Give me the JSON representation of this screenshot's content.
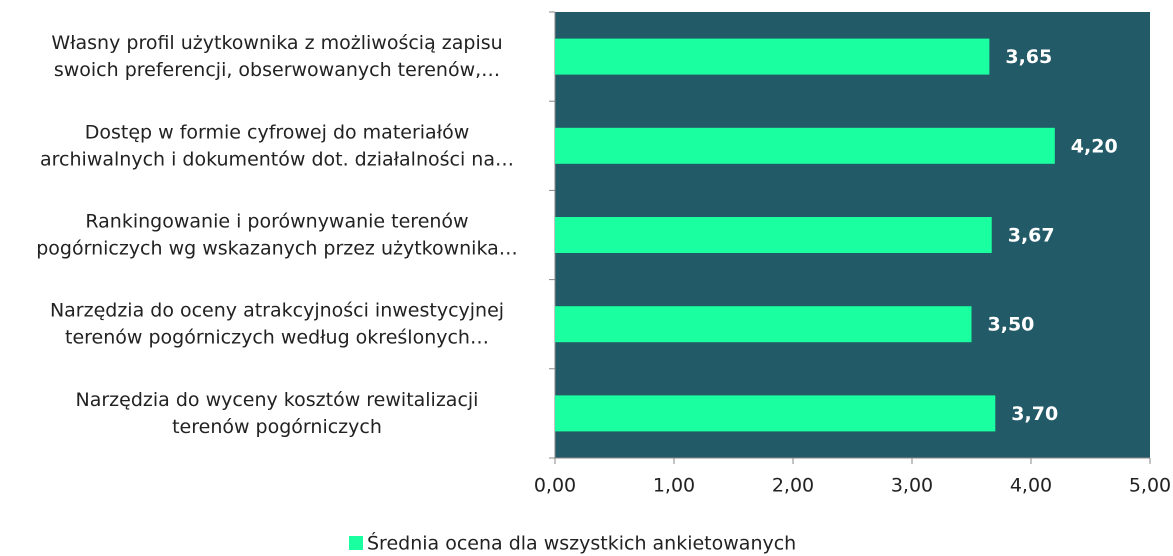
{
  "chart_data": {
    "type": "bar",
    "orientation": "horizontal",
    "categories": [
      "Własny profil użytkownika z możliwością zapisu\nswoich preferencji, obserwowanych terenów,…",
      "Dostęp w formie cyfrowej do materiałów\narchiwalnych i dokumentów dot. działalności na…",
      "Rankingowanie i porównywanie terenów\npogórniczych wg wskazanych przez użytkownika…",
      "Narzędzia do oceny atrakcyjności inwestycyjnej\nterenów pogórniczych według określonych…",
      "Narzędzia do wyceny kosztów rewitalizacji\nterenów pogórniczych"
    ],
    "series": [
      {
        "name": "Średnia ocena dla wszystkich ankietowanych",
        "color": "#1affa0",
        "values": [
          3.65,
          4.2,
          3.67,
          3.5,
          3.7
        ],
        "value_labels": [
          "3,65",
          "4,20",
          "3,67",
          "3,50",
          "3,70"
        ]
      }
    ],
    "xlim": [
      0,
      5
    ],
    "xticks": [
      {
        "value": 0,
        "label": "0,00"
      },
      {
        "value": 1,
        "label": "1,00"
      },
      {
        "value": 2,
        "label": "2,00"
      },
      {
        "value": 3,
        "label": "3,00"
      },
      {
        "value": 4,
        "label": "4,00"
      },
      {
        "value": 5,
        "label": "5,00"
      }
    ],
    "plot_background": "#235a68",
    "legend": "bottom"
  }
}
